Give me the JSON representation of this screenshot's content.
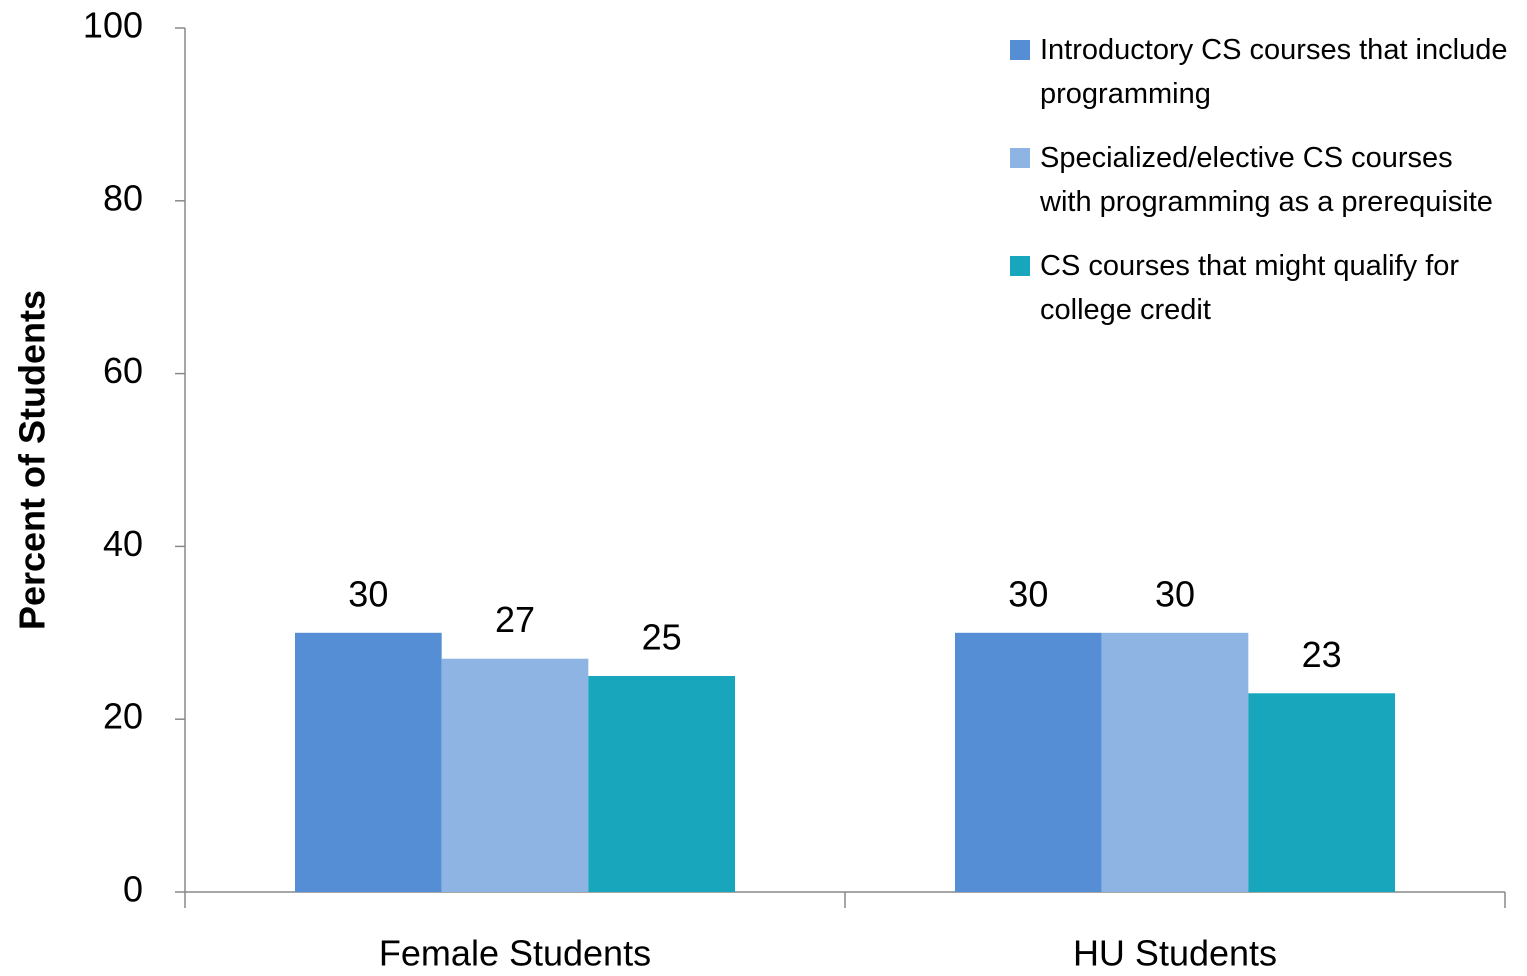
{
  "chart_data": {
    "type": "bar",
    "ylabel": "Percent of Students",
    "categories": [
      "Female Students",
      "HU Students"
    ],
    "series": [
      {
        "name": "Introductory CS courses that include programming",
        "color": "#558ed5",
        "values": [
          30,
          30
        ]
      },
      {
        "name": "Specialized/elective CS courses with programming as a prerequisite",
        "color": "#8eb4e3",
        "values": [
          27,
          30
        ]
      },
      {
        "name": "CS courses that might qualify for college credit",
        "color": "#17a6bb",
        "values": [
          25,
          23
        ]
      }
    ],
    "ylim": [
      0,
      100
    ],
    "yticks": [
      0,
      20,
      40,
      60,
      80,
      100
    ]
  }
}
